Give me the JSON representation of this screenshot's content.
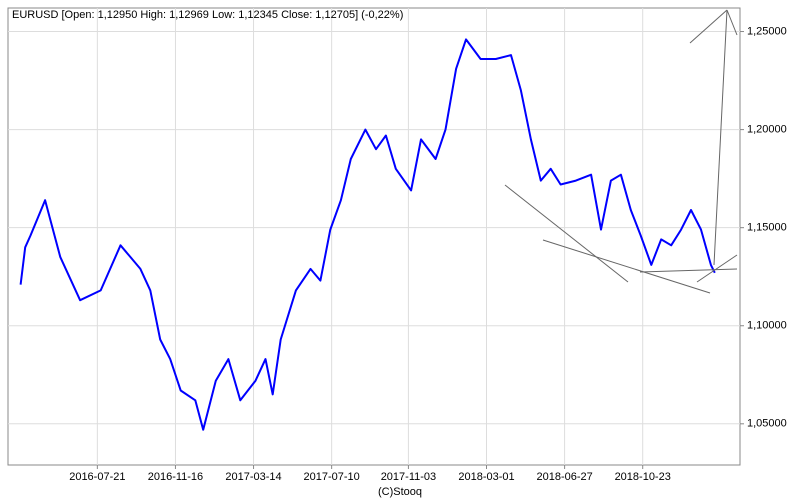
{
  "chart_data": {
    "type": "line",
    "title": "EURUSD [Open: 1,12950  High: 1,12969  Low: 1,12345  Close: 1,12705] (-0,22%)",
    "footer": "(C)Stooq",
    "x": [
      "2016-03-27",
      "2016-04-03",
      "2016-04-11",
      "2016-05-03",
      "2016-05-26",
      "2016-06-25",
      "2016-07-26",
      "2016-08-25",
      "2016-09-24",
      "2016-10-09",
      "2016-10-24",
      "2016-11-08",
      "2016-11-24",
      "2016-12-16",
      "2016-12-28",
      "2017-01-16",
      "2017-02-04",
      "2017-02-22",
      "2017-03-17",
      "2017-04-01",
      "2017-04-12",
      "2017-04-24",
      "2017-05-17",
      "2017-06-08",
      "2017-06-23",
      "2017-07-08",
      "2017-07-24",
      "2017-08-08",
      "2017-08-30",
      "2017-09-15",
      "2017-09-30",
      "2017-10-15",
      "2017-11-07",
      "2017-11-22",
      "2017-12-14",
      "2017-12-29",
      "2018-01-14",
      "2018-01-29",
      "2018-02-20",
      "2018-03-15",
      "2018-04-07",
      "2018-04-22",
      "2018-05-07",
      "2018-05-22",
      "2018-06-06",
      "2018-06-21",
      "2018-07-14",
      "2018-08-06",
      "2018-08-21",
      "2018-09-05",
      "2018-09-20",
      "2018-10-05",
      "2018-10-20",
      "2018-11-05",
      "2018-11-20",
      "2018-12-05",
      "2018-12-20",
      "2019-01-04",
      "2019-01-19",
      "2019-02-03",
      "2019-02-09"
    ],
    "series": [
      {
        "name": "EURUSD",
        "color": "#0000ff",
        "values": [
          1.121,
          1.14,
          1.146,
          1.164,
          1.135,
          1.113,
          1.118,
          1.141,
          1.129,
          1.118,
          1.093,
          1.083,
          1.067,
          1.062,
          1.047,
          1.072,
          1.083,
          1.062,
          1.072,
          1.083,
          1.065,
          1.093,
          1.118,
          1.129,
          1.123,
          1.149,
          1.164,
          1.185,
          1.2,
          1.19,
          1.197,
          1.18,
          1.169,
          1.195,
          1.185,
          1.2,
          1.231,
          1.246,
          1.236,
          1.236,
          1.238,
          1.22,
          1.195,
          1.174,
          1.18,
          1.172,
          1.174,
          1.177,
          1.149,
          1.174,
          1.177,
          1.159,
          1.146,
          1.131,
          1.144,
          1.141,
          1.149,
          1.159,
          1.149,
          1.131,
          1.127
        ]
      }
    ],
    "xlim": [
      "2016-03-08",
      "2019-03-19"
    ],
    "xticks": [
      "2016-07-21",
      "2016-11-16",
      "2017-03-14",
      "2017-07-10",
      "2017-11-03",
      "2018-03-01",
      "2018-06-27",
      "2018-10-23"
    ],
    "ylim": [
      1.029,
      1.262
    ],
    "yticks": [
      {
        "value": 1.05,
        "label": "1,05000"
      },
      {
        "value": 1.1,
        "label": "1,10000"
      },
      {
        "value": 1.15,
        "label": "1,15000"
      },
      {
        "value": 1.2,
        "label": "1,20000"
      },
      {
        "value": 1.25,
        "label": "1,25000"
      }
    ],
    "grid": true
  }
}
